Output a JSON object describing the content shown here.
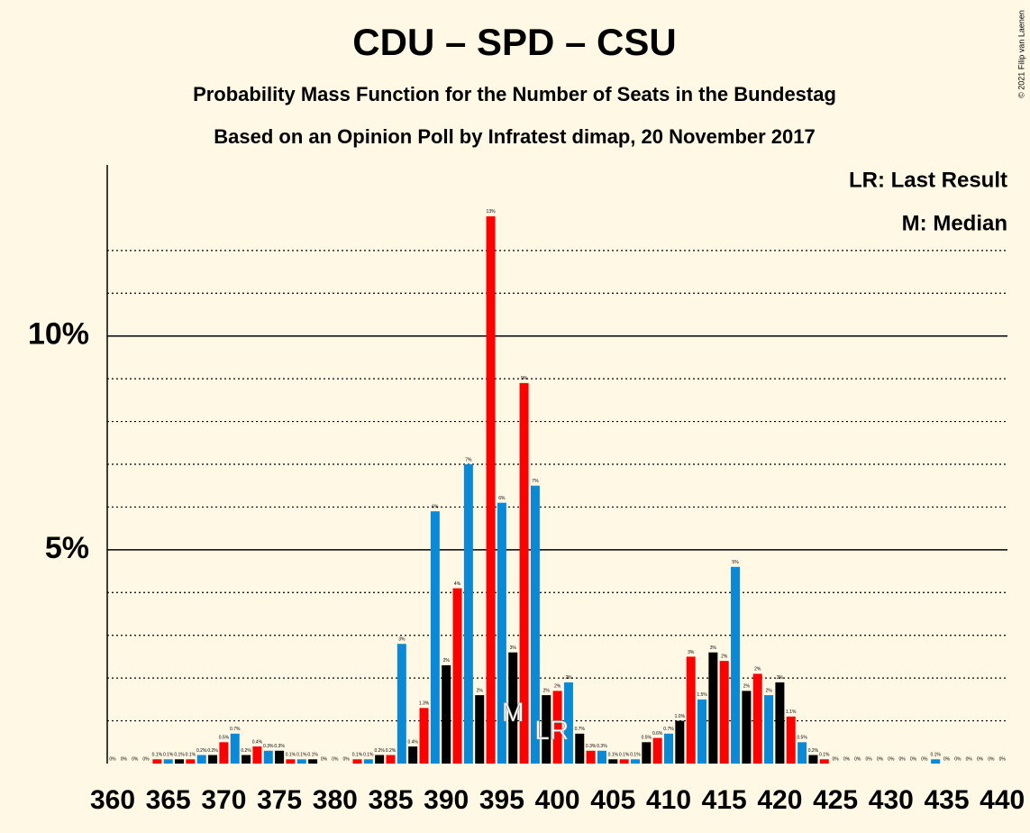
{
  "chart_data": {
    "type": "bar",
    "title": "CDU – SPD – CSU",
    "subtitle": "Probability Mass Function for the Number of Seats in the Bundestag",
    "subtitle2": "Based on an Opinion Poll by Infratest dimap, 20 November 2017",
    "copyright": "© 2021 Filip van Laenen",
    "legend": [
      "LR: Last Result",
      "M: Median"
    ],
    "categories": [
      360,
      null,
      null,
      null,
      null,
      365,
      null,
      null,
      null,
      null,
      370,
      null,
      null,
      null,
      null,
      375,
      null,
      null,
      null,
      null,
      380,
      null,
      null,
      null,
      null,
      385,
      null,
      null,
      null,
      null,
      390,
      null,
      null,
      null,
      null,
      395,
      null,
      null,
      null,
      null,
      400,
      null,
      null,
      null,
      null,
      405,
      null,
      null,
      null,
      null,
      410,
      null,
      null,
      null,
      null,
      415,
      null,
      null,
      null,
      null,
      420,
      null,
      null,
      null,
      null,
      425,
      null,
      null,
      null,
      null,
      430,
      null,
      null,
      null,
      null,
      435,
      null,
      null,
      null,
      null,
      440
    ],
    "values": [
      0,
      0,
      0,
      0,
      0.1,
      0.1,
      0.1,
      0.1,
      0.2,
      0.2,
      0.5,
      0.7,
      0.2,
      0.4,
      0.3,
      0.3,
      0.1,
      0.1,
      0.1,
      0,
      0,
      0,
      0.1,
      0.1,
      0.2,
      0.2,
      2.8,
      0.4,
      1.3,
      5.9,
      2.3,
      4.1,
      7.0,
      1.6,
      12.8,
      6.1,
      2.6,
      8.9,
      6.5,
      1.6,
      1.7,
      1.9,
      0.7,
      0.3,
      0.3,
      0.1,
      0.1,
      0.1,
      0.5,
      0.6,
      0.7,
      1.0,
      2.5,
      1.5,
      2.6,
      2.4,
      4.6,
      1.7,
      2.1,
      1.6,
      1.9,
      1.1,
      0.5,
      0.2,
      0.1,
      0,
      0,
      0,
      0,
      0,
      0,
      0,
      0,
      0,
      0.1,
      0,
      0,
      0,
      0,
      0,
      0
    ],
    "value_labels": [
      "0%",
      "0%",
      "0%",
      "0%",
      "0.1%",
      "0.1%",
      "0.1%",
      "0.1%",
      "0.2%",
      "0.2%",
      "0.5%",
      "0.7%",
      "0.2%",
      "0.4%",
      "0.3%",
      "0.3%",
      "0.1%",
      "0.1%",
      "0.1%",
      "0%",
      "0%",
      "0%",
      "0.1%",
      "0.1%",
      "0.2%",
      "0.2%",
      "3%",
      "0.4%",
      "1.3%",
      "6%",
      "2%",
      "4%",
      "7%",
      "2%",
      "13%",
      "6%",
      "3%",
      "9%",
      "7%",
      "2%",
      "2%",
      "2%",
      "0.7%",
      "0.3%",
      "0.3%",
      "0.1%",
      "0.1%",
      "0.1%",
      "0.5%",
      "0.6%",
      "0.7%",
      "1.0%",
      "3%",
      "1.5%",
      "3%",
      "2%",
      "5%",
      "2%",
      "2%",
      "2%",
      "2%",
      "1.1%",
      "0.5%",
      "0.2%",
      "0.1%",
      "0%",
      "0%",
      "0%",
      "0%",
      "0%",
      "0%",
      "0%",
      "0%",
      "0%",
      "0.1%",
      "0%",
      "0%",
      "0%",
      "0%",
      "0%",
      "0%"
    ],
    "color_cycle": [
      "#000000",
      "#ff0000",
      "#0a8ad6"
    ],
    "ylim": [
      0,
      14
    ],
    "yticks": [
      {
        "value": 5,
        "label": "5%"
      },
      {
        "value": 10,
        "label": "10%"
      }
    ],
    "minor_yticks": [
      1,
      2,
      3,
      4,
      6,
      7,
      8,
      9,
      11,
      12
    ],
    "annotations": [
      {
        "label": "M",
        "x": 396
      },
      {
        "label": "LR",
        "x": 399
      }
    ]
  }
}
